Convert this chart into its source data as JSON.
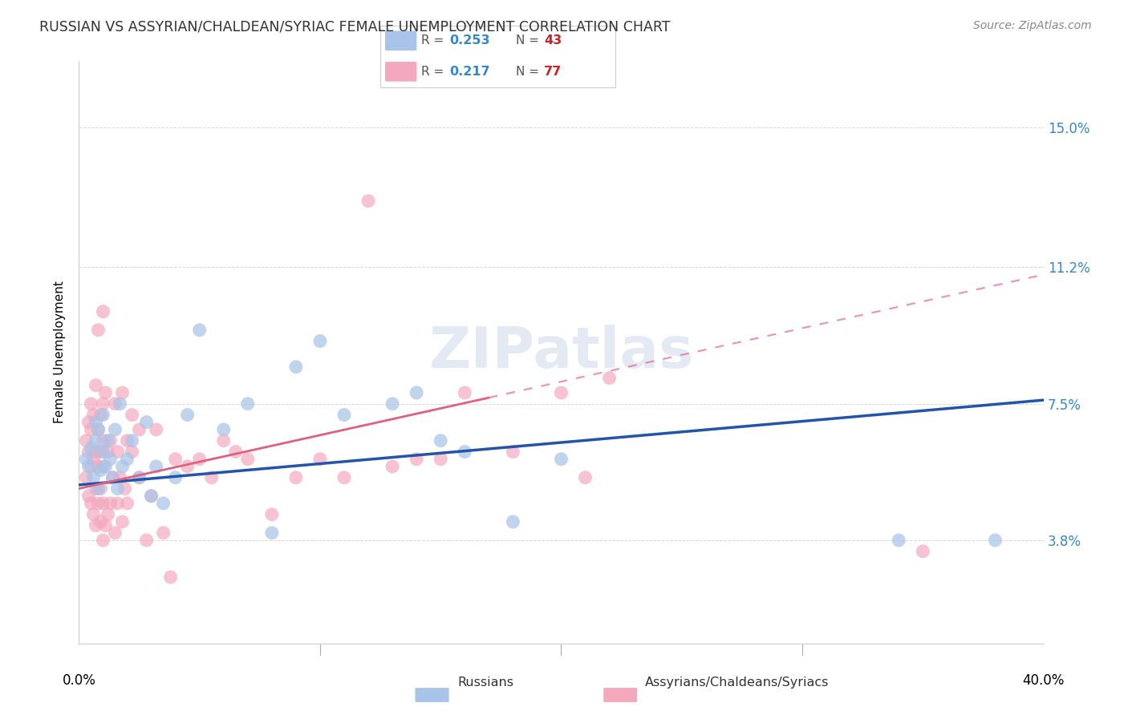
{
  "title": "RUSSIAN VS ASSYRIAN/CHALDEAN/SYRIAC FEMALE UNEMPLOYMENT CORRELATION CHART",
  "source": "Source: ZipAtlas.com",
  "ylabel": "Female Unemployment",
  "ytick_values": [
    0.038,
    0.075,
    0.112,
    0.15
  ],
  "ytick_labels": [
    "3.8%",
    "7.5%",
    "11.2%",
    "15.0%"
  ],
  "xmin": 0.0,
  "xmax": 0.4,
  "ymin": 0.01,
  "ymax": 0.168,
  "R_blue": 0.253,
  "N_blue": 43,
  "R_pink": 0.217,
  "N_pink": 77,
  "blue_color": "#A8C4E8",
  "pink_color": "#F4A8BE",
  "blue_line_color": "#2255AA",
  "pink_line_color": "#E06080",
  "blue_line_start_y": 0.053,
  "blue_line_end_y": 0.076,
  "pink_line_start_y": 0.052,
  "pink_line_end_y": 0.11,
  "russians_x": [
    0.003,
    0.004,
    0.005,
    0.006,
    0.007,
    0.007,
    0.008,
    0.008,
    0.009,
    0.01,
    0.01,
    0.011,
    0.012,
    0.013,
    0.014,
    0.015,
    0.016,
    0.017,
    0.018,
    0.02,
    0.022,
    0.025,
    0.028,
    0.03,
    0.032,
    0.035,
    0.04,
    0.045,
    0.05,
    0.06,
    0.07,
    0.08,
    0.09,
    0.1,
    0.11,
    0.13,
    0.14,
    0.15,
    0.16,
    0.18,
    0.2,
    0.34,
    0.38
  ],
  "russians_y": [
    0.06,
    0.058,
    0.063,
    0.055,
    0.065,
    0.07,
    0.052,
    0.068,
    0.057,
    0.062,
    0.072,
    0.058,
    0.065,
    0.06,
    0.055,
    0.068,
    0.052,
    0.075,
    0.058,
    0.06,
    0.065,
    0.055,
    0.07,
    0.05,
    0.058,
    0.048,
    0.055,
    0.072,
    0.095,
    0.068,
    0.075,
    0.04,
    0.085,
    0.092,
    0.072,
    0.075,
    0.078,
    0.065,
    0.062,
    0.043,
    0.06,
    0.038,
    0.038
  ],
  "assyrians_x": [
    0.003,
    0.003,
    0.004,
    0.004,
    0.004,
    0.005,
    0.005,
    0.005,
    0.005,
    0.006,
    0.006,
    0.006,
    0.007,
    0.007,
    0.007,
    0.007,
    0.008,
    0.008,
    0.008,
    0.008,
    0.009,
    0.009,
    0.009,
    0.009,
    0.01,
    0.01,
    0.01,
    0.01,
    0.01,
    0.01,
    0.011,
    0.011,
    0.012,
    0.012,
    0.013,
    0.013,
    0.014,
    0.015,
    0.015,
    0.016,
    0.016,
    0.017,
    0.018,
    0.018,
    0.019,
    0.02,
    0.02,
    0.022,
    0.022,
    0.025,
    0.025,
    0.028,
    0.03,
    0.032,
    0.035,
    0.038,
    0.04,
    0.045,
    0.05,
    0.055,
    0.06,
    0.065,
    0.07,
    0.08,
    0.09,
    0.1,
    0.11,
    0.12,
    0.13,
    0.14,
    0.15,
    0.16,
    0.18,
    0.2,
    0.21,
    0.22,
    0.35
  ],
  "assyrians_y": [
    0.055,
    0.065,
    0.05,
    0.062,
    0.07,
    0.048,
    0.058,
    0.068,
    0.075,
    0.045,
    0.06,
    0.072,
    0.042,
    0.052,
    0.062,
    0.08,
    0.048,
    0.058,
    0.068,
    0.095,
    0.043,
    0.052,
    0.062,
    0.072,
    0.038,
    0.048,
    0.058,
    0.065,
    0.075,
    0.1,
    0.042,
    0.078,
    0.045,
    0.062,
    0.048,
    0.065,
    0.055,
    0.04,
    0.075,
    0.048,
    0.062,
    0.055,
    0.043,
    0.078,
    0.052,
    0.048,
    0.065,
    0.062,
    0.072,
    0.055,
    0.068,
    0.038,
    0.05,
    0.068,
    0.04,
    0.028,
    0.06,
    0.058,
    0.06,
    0.055,
    0.065,
    0.062,
    0.06,
    0.045,
    0.055,
    0.06,
    0.055,
    0.13,
    0.058,
    0.06,
    0.06,
    0.078,
    0.062,
    0.078,
    0.055,
    0.082,
    0.035
  ]
}
